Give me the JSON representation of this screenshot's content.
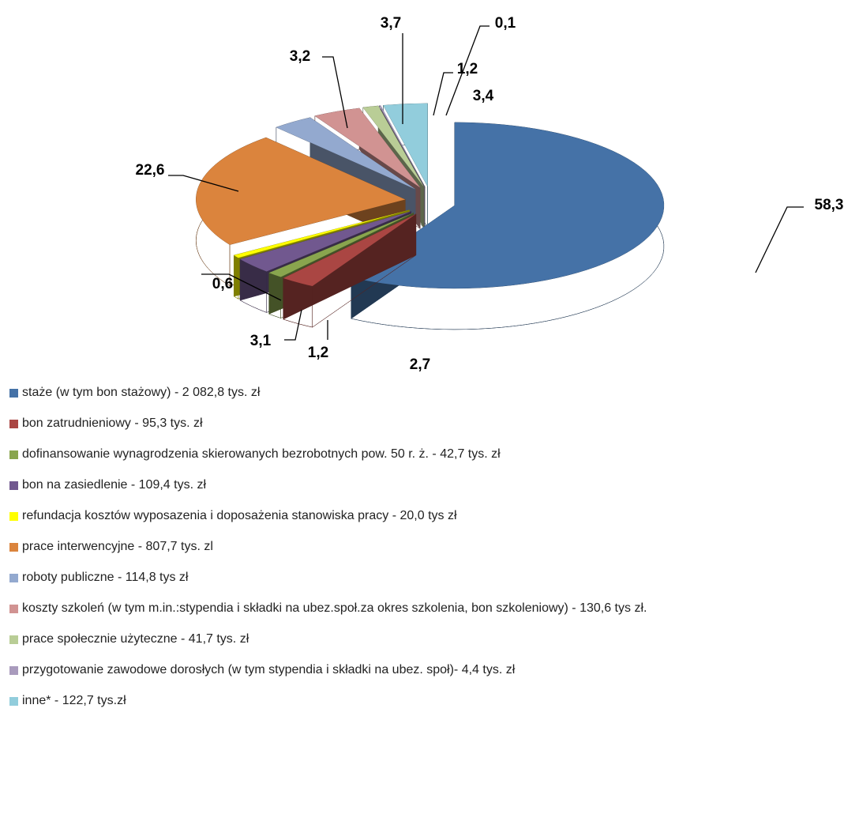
{
  "chart_data": {
    "type": "pie",
    "categories": [
      "staże (w tym bon stażowy) - 2 082,8 tys. zł",
      "bon zatrudnieniowy - 95,3 tys. zł",
      "dofinansowanie wynagrodzenia skierowanych bezrobotnych pow. 50 r. ż. - 42,7 tys. zł",
      "bon na zasiedlenie - 109,4 tys. zł",
      "refundacja kosztów wyposazenia i doposażenia stanowiska pracy - 20,0 tys zł",
      "prace interwencyjne - 807,7 tys. zl",
      "roboty publiczne - 114,8 tys zł",
      "koszty szkoleń (w tym m.in.:stypendia i składki na ubez.społ.za okres szkolenia, bon szkoleniowy) -  130,6 tys zł.",
      "prace społecznie użyteczne - 41,7 tys. zł",
      "przygotowanie zawodowe dorosłych (w tym stypendia i składki na ubez. społ)- 4,4 tys. zł",
      "inne* - 122,7 tys.zł"
    ],
    "values": [
      58.3,
      2.7,
      1.2,
      3.1,
      0.6,
      22.6,
      3.2,
      3.7,
      1.2,
      0.1,
      3.4
    ],
    "value_labels": [
      "58,3",
      "2,7",
      "1,2",
      "3,1",
      "0,6",
      "22,6",
      "3,2",
      "3,7",
      "1,2",
      "0,1",
      "3,4"
    ],
    "colors": [
      "#4572a7",
      "#aa4643",
      "#89a54e",
      "#71588f",
      "#ffff00",
      "#db843d",
      "#93a9cf",
      "#d19392",
      "#b9cd96",
      "#a99bbd",
      "#92cddc"
    ],
    "legend": "bottom"
  }
}
